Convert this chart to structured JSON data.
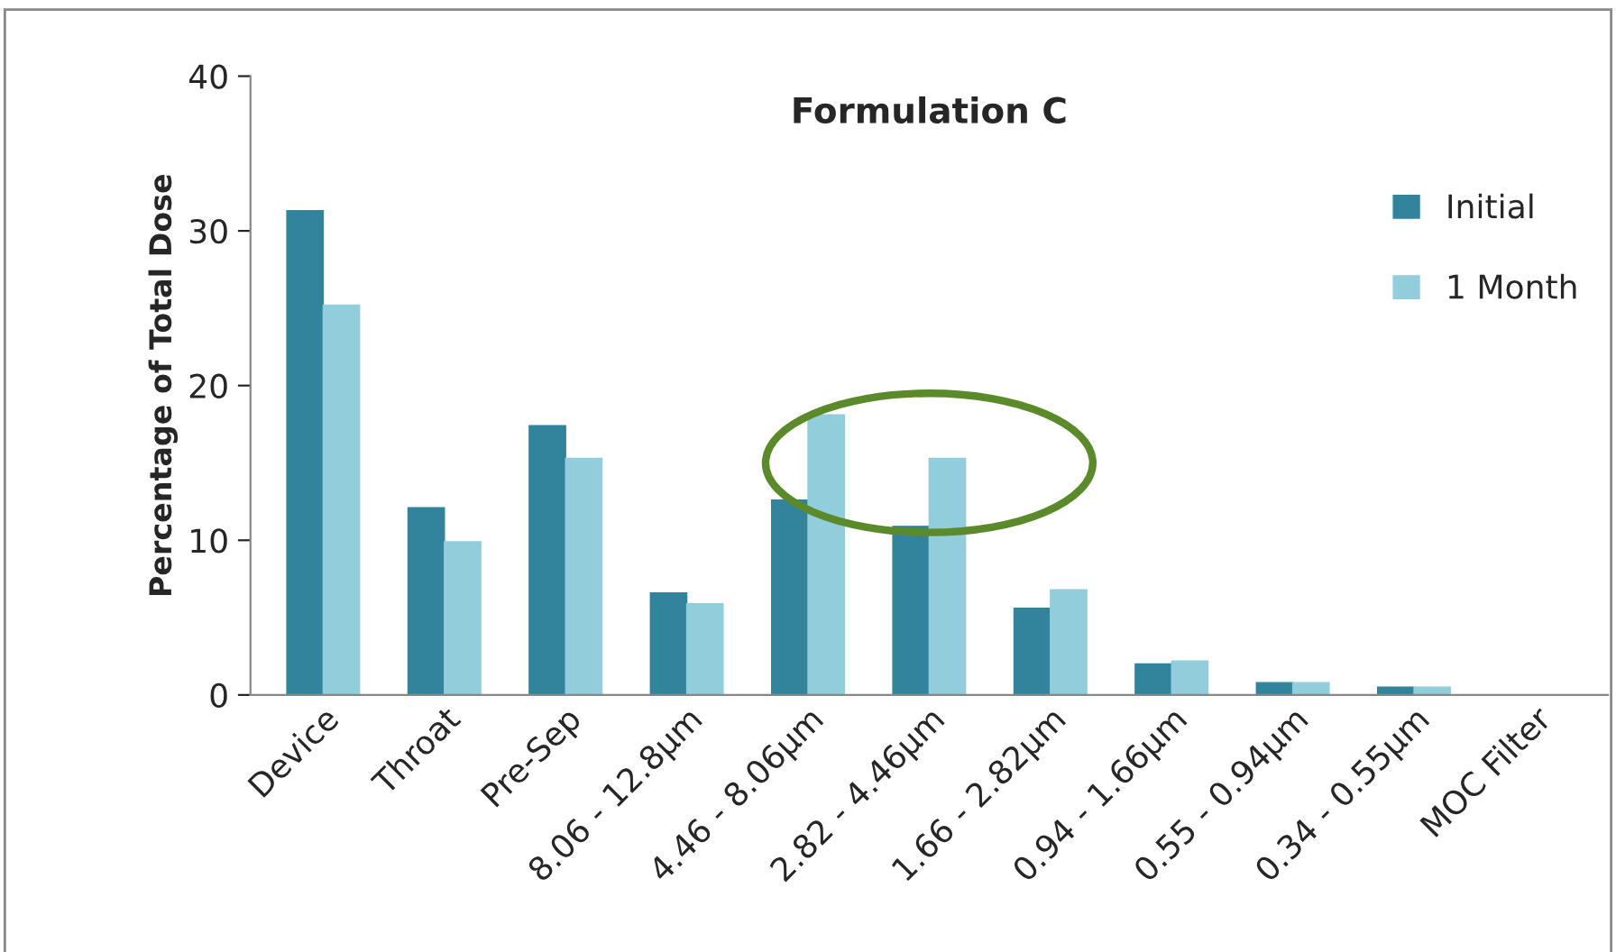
{
  "chart_data": {
    "type": "bar",
    "title": "Formulation C",
    "ylabel": "Percentage of Total Dose",
    "categories": [
      "Device",
      "Throat",
      "Pre-Sep",
      "8.06 - 12.8µm",
      "4.46 - 8.06µm",
      "2.82 - 4.46µm",
      "1.66 - 2.82µm",
      "0.94 - 1.66µm",
      "0.55 - 0.94µm",
      "0.34 - 0.55µm",
      "MOC Filter"
    ],
    "series": [
      {
        "name": "Initial",
        "color": "#31849b",
        "values": [
          31.3,
          12.1,
          17.4,
          6.6,
          12.6,
          10.9,
          5.6,
          2.0,
          0.8,
          0.5,
          0
        ]
      },
      {
        "name": "1 Month",
        "color": "#92cddc",
        "values": [
          25.2,
          9.9,
          15.3,
          5.9,
          18.1,
          15.3,
          6.8,
          2.2,
          0.8,
          0.5,
          0
        ]
      }
    ],
    "ylim": [
      0,
      40
    ],
    "yticks": [
      0,
      10,
      20,
      30,
      40
    ],
    "grid": false,
    "legend": "right"
  }
}
